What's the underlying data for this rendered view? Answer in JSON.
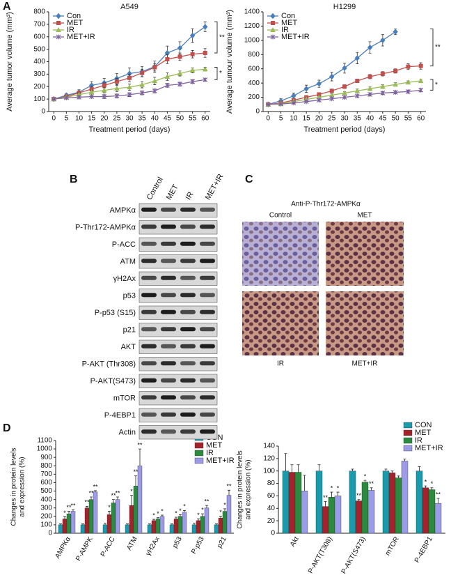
{
  "panel_labels": [
    "A",
    "B",
    "C",
    "D"
  ],
  "chart_data": [
    {
      "type": "line",
      "title": "A549",
      "x_label": "Treatment period (days)",
      "y_label": "Average tumor volume (mm³)",
      "x": [
        0,
        5,
        10,
        15,
        20,
        25,
        30,
        35,
        40,
        45,
        50,
        55,
        60
      ],
      "xlim": [
        -2,
        62
      ],
      "xticks": [
        0,
        5,
        10,
        15,
        20,
        25,
        30,
        35,
        40,
        45,
        50,
        55,
        60
      ],
      "ylim": [
        0,
        800
      ],
      "yticks": [
        0,
        100,
        200,
        300,
        400,
        500,
        600,
        700,
        800
      ],
      "series": [
        {
          "name": "Con",
          "color": "#4a7ebb",
          "marker": "diamond",
          "values": [
            100,
            130,
            155,
            210,
            230,
            265,
            305,
            320,
            360,
            470,
            510,
            610,
            680
          ],
          "errors": [
            0,
            15,
            20,
            30,
            35,
            40,
            45,
            40,
            45,
            55,
            50,
            55,
            40
          ]
        },
        {
          "name": "MET",
          "color": "#c0504d",
          "marker": "square",
          "values": [
            100,
            120,
            150,
            180,
            210,
            240,
            270,
            310,
            355,
            420,
            440,
            460,
            470
          ],
          "errors": [
            0,
            10,
            15,
            20,
            20,
            25,
            30,
            30,
            30,
            35,
            30,
            30,
            35
          ]
        },
        {
          "name": "IR",
          "color": "#9bbb59",
          "marker": "triangle",
          "values": [
            100,
            115,
            135,
            155,
            170,
            185,
            195,
            215,
            245,
            280,
            305,
            330,
            340
          ],
          "errors": [
            0,
            10,
            15,
            15,
            20,
            25,
            25,
            25,
            30,
            30,
            20,
            20,
            15
          ]
        },
        {
          "name": "MET+IR",
          "color": "#8064a2",
          "marker": "cross",
          "values": [
            100,
            110,
            115,
            120,
            120,
            125,
            135,
            150,
            165,
            210,
            220,
            240,
            255
          ],
          "errors": [
            0,
            8,
            10,
            10,
            15,
            15,
            15,
            15,
            15,
            15,
            15,
            15,
            10
          ]
        }
      ],
      "annotations": [
        "**",
        "*"
      ]
    },
    {
      "type": "line",
      "title": "H1299",
      "x_label": "Treatment period (days)",
      "y_label": "Average tumour volume (mm³)",
      "x": [
        0,
        5,
        10,
        15,
        20,
        25,
        30,
        35,
        40,
        45,
        50,
        55,
        60
      ],
      "xlim": [
        -2,
        62
      ],
      "xticks": [
        0,
        5,
        10,
        15,
        20,
        25,
        30,
        35,
        40,
        45,
        50,
        55,
        60
      ],
      "ylim": [
        0,
        1400
      ],
      "yticks": [
        0,
        200,
        400,
        600,
        800,
        1000,
        1200,
        1400
      ],
      "series": [
        {
          "name": "Con",
          "color": "#4a7ebb",
          "marker": "diamond",
          "values": [
            100,
            150,
            220,
            320,
            390,
            490,
            610,
            750,
            900,
            1000,
            1120,
            null,
            null
          ],
          "errors": [
            0,
            30,
            40,
            50,
            50,
            60,
            70,
            80,
            80,
            80,
            40,
            null,
            null
          ]
        },
        {
          "name": "MET",
          "color": "#c0504d",
          "marker": "square",
          "values": [
            100,
            120,
            160,
            200,
            240,
            290,
            350,
            430,
            490,
            530,
            570,
            630,
            640
          ],
          "errors": [
            0,
            15,
            20,
            20,
            20,
            25,
            25,
            25,
            30,
            30,
            30,
            40,
            45
          ]
        },
        {
          "name": "IR",
          "color": "#9bbb59",
          "marker": "triangle",
          "values": [
            100,
            110,
            140,
            170,
            200,
            230,
            260,
            290,
            320,
            350,
            380,
            410,
            430
          ],
          "errors": [
            0,
            10,
            15,
            15,
            20,
            20,
            20,
            25,
            25,
            25,
            25,
            20,
            20
          ]
        },
        {
          "name": "MET+IR",
          "color": "#8064a2",
          "marker": "cross",
          "values": [
            100,
            105,
            120,
            140,
            160,
            180,
            200,
            220,
            240,
            260,
            270,
            280,
            300
          ],
          "errors": [
            0,
            10,
            10,
            10,
            15,
            15,
            15,
            15,
            20,
            20,
            20,
            20,
            20
          ]
        }
      ],
      "annotations": [
        "**",
        "*"
      ]
    },
    {
      "type": "bar",
      "y_label": [
        "Changes in protein levels",
        "and expression (%)"
      ],
      "categories": [
        "AMPKα",
        "P-AMPK",
        "P-ACC",
        "ATM",
        "γH2Ax",
        "p53",
        "P-p53",
        "p21"
      ],
      "ylim": [
        0,
        1100
      ],
      "yticks": [
        0,
        100,
        200,
        300,
        400,
        500,
        600,
        700,
        800,
        900,
        1000,
        1100
      ],
      "series": [
        {
          "name": "CON",
          "color": "#1a9aaa",
          "values": [
            100,
            100,
            100,
            100,
            100,
            100,
            100,
            100
          ],
          "errors": [
            10,
            10,
            20,
            10,
            10,
            10,
            20,
            10
          ],
          "stars": [
            null,
            null,
            null,
            null,
            null,
            null,
            null,
            null
          ]
        },
        {
          "name": "MET",
          "color": "#a3232b",
          "values": [
            170,
            300,
            220,
            330,
            150,
            170,
            150,
            180
          ],
          "errors": [
            25,
            20,
            40,
            120,
            15,
            20,
            20,
            20
          ],
          "stars": [
            "*",
            "**",
            "*",
            "*",
            "*",
            "*",
            "*",
            "*"
          ]
        },
        {
          "name": "IR",
          "color": "#2b8a3e",
          "values": [
            230,
            400,
            360,
            560,
            170,
            200,
            200,
            260
          ],
          "errors": [
            30,
            30,
            40,
            120,
            15,
            20,
            30,
            30
          ],
          "stars": [
            "**",
            "**",
            "**",
            "**",
            "*",
            "*",
            "*",
            "*"
          ]
        },
        {
          "name": "MET+IR",
          "color": "#9b9be8",
          "values": [
            260,
            490,
            400,
            800,
            200,
            250,
            300,
            450
          ],
          "errors": [
            20,
            15,
            30,
            200,
            15,
            20,
            30,
            60
          ],
          "stars": [
            "**",
            "**",
            "**",
            "**",
            "*",
            "*",
            "**",
            "**"
          ]
        }
      ]
    },
    {
      "type": "bar",
      "y_label": [
        "Changes in protein levels",
        "and expression (%)"
      ],
      "categories": [
        "Akt",
        "P-AKT(T308)",
        "P-AKT(S473)",
        "mTOR",
        "P-4EBP1"
      ],
      "ylim": [
        0,
        140
      ],
      "yticks": [
        0,
        20,
        40,
        60,
        80,
        100,
        120,
        140
      ],
      "series": [
        {
          "name": "CON",
          "color": "#1a9aaa",
          "values": [
            100,
            100,
            100,
            100,
            100
          ],
          "errors": [
            28,
            10,
            3,
            3,
            7
          ],
          "stars": [
            null,
            null,
            null,
            null,
            null
          ]
        },
        {
          "name": "MET",
          "color": "#a3232b",
          "values": [
            98,
            43,
            52,
            97,
            73
          ],
          "errors": [
            12,
            8,
            2,
            3,
            3
          ],
          "stars": [
            null,
            "**",
            "**",
            null,
            "*"
          ]
        },
        {
          "name": "IR",
          "color": "#2b8a3e",
          "values": [
            98,
            58,
            82,
            89,
            70
          ],
          "errors": [
            12,
            8,
            3,
            3,
            3
          ],
          "stars": [
            null,
            "*",
            "*",
            null,
            "*"
          ]
        },
        {
          "name": "MET+IR",
          "color": "#9b9be8",
          "values": [
            68,
            60,
            69,
            116,
            48
          ],
          "errors": [
            25,
            6,
            4,
            3,
            8
          ],
          "stars": [
            null,
            "*",
            "**",
            null,
            "**"
          ]
        }
      ]
    }
  ],
  "blot": {
    "columns": [
      "Control",
      "MET",
      "IR",
      "MET+IR"
    ],
    "rows": [
      "AMPKα",
      "P-Thr172-AMPKα",
      "P-ACC",
      "ATM",
      "γH2Ax",
      "p53",
      "P-p53 (S15)",
      "p21",
      "AKT",
      "P-AKT (Thr308)",
      "P-AKT(S473)",
      "mTOR",
      "P-4EBP1",
      "Actin"
    ]
  },
  "ihc": {
    "title": "Anti-P-Thr172-AMPKα",
    "panels": [
      "Control",
      "MET",
      "IR",
      "MET+IR"
    ]
  }
}
